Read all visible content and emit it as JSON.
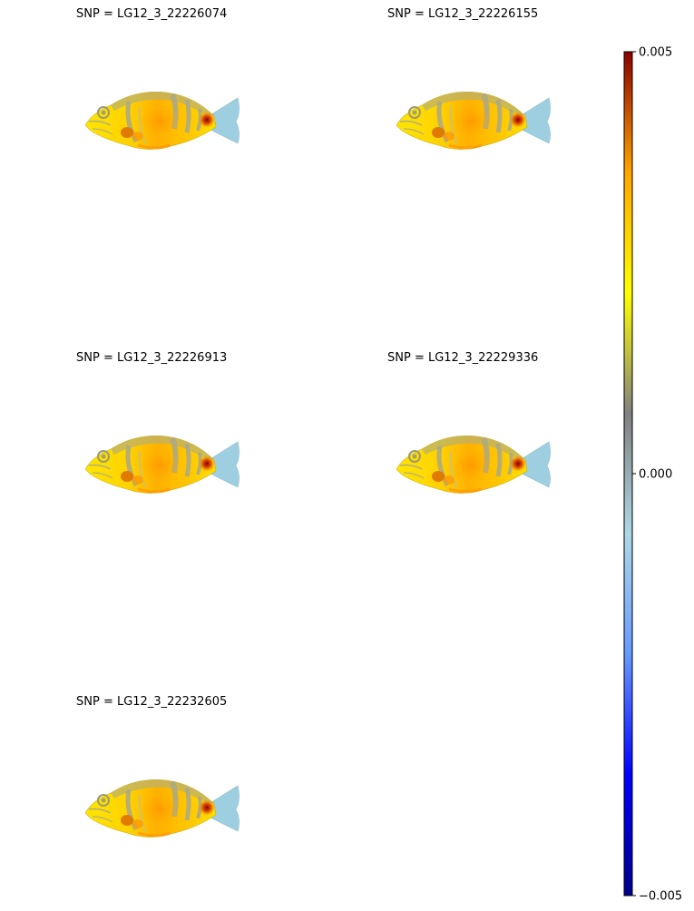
{
  "chart_data": {
    "type": "heatmap",
    "colormap": {
      "min": -0.005,
      "max": 0.005,
      "ticks": [
        0.005,
        0.0,
        -0.005
      ],
      "tick_labels": [
        "0.005",
        "0.000",
        "−0.005"
      ],
      "stops": [
        "#00008b",
        "#0000ff",
        "#6699ff",
        "#add8e6",
        "#808080",
        "#ffff00",
        "#ffa500",
        "#8b0000"
      ]
    },
    "panels": [
      {
        "title": "SNP = LG12_3_22226074"
      },
      {
        "title": "SNP = LG12_3_22226155"
      },
      {
        "title": "SNP = LG12_3_22226913"
      },
      {
        "title": "SNP = LG12_3_22229336"
      },
      {
        "title": "SNP = LG12_3_22232605"
      }
    ]
  }
}
